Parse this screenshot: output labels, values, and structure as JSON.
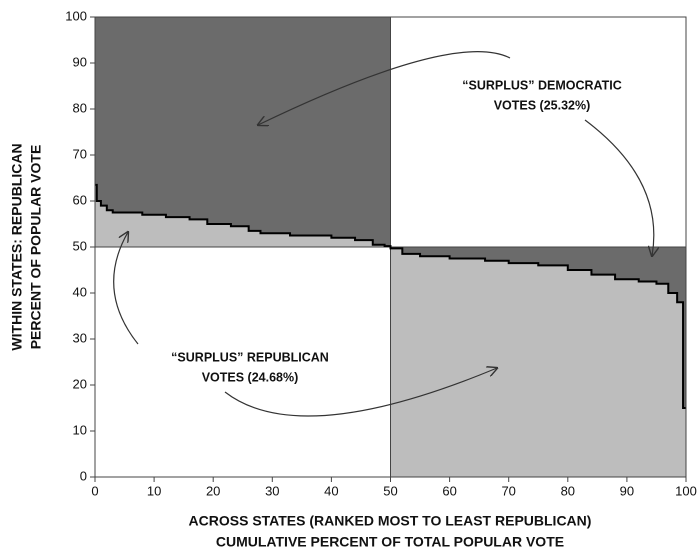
{
  "chart_data": {
    "type": "step",
    "x_label": [
      "ACROSS STATES (RANKED MOST TO LEAST REPUBLICAN)",
      "CUMULATIVE PERCENT OF TOTAL POPULAR VOTE"
    ],
    "y_label": [
      "WITHIN STATES: REPUBLICAN",
      "PERCENT OF POPULAR VOTE"
    ],
    "annotations": [
      {
        "lines": [
          "“SURPLUS” DEMOCRATIC",
          "VOTES (25.32%)"
        ]
      },
      {
        "lines": [
          "“SURPLUS” REPUBLICAN",
          "VOTES (24.68%)"
        ]
      }
    ],
    "xlim": [
      0,
      100
    ],
    "ylim": [
      0,
      100
    ],
    "xticks": [
      0,
      10,
      20,
      30,
      40,
      50,
      60,
      70,
      80,
      90,
      100
    ],
    "yticks": [
      0,
      10,
      20,
      30,
      40,
      50,
      60,
      70,
      80,
      90,
      100
    ],
    "vlines": [
      50
    ],
    "hlines": [
      50
    ],
    "color": "#000000",
    "above_color": "#6b6b6b",
    "below_color": "#bdbdbd",
    "x": [
      0,
      0.3,
      0.3,
      1,
      1,
      2,
      2,
      3,
      3,
      8,
      8,
      12,
      12,
      16,
      16,
      19,
      19,
      23,
      23,
      26,
      26,
      28,
      28,
      33,
      33,
      40,
      40,
      44,
      44,
      47,
      47,
      49,
      49,
      50,
      50,
      52,
      52,
      55,
      55,
      60,
      60,
      66,
      66,
      70,
      70,
      75,
      75,
      80,
      80,
      84,
      84,
      88,
      88,
      92,
      92,
      95,
      95,
      97,
      97,
      98.5,
      98.5,
      99.5,
      99.5,
      100
    ],
    "values": [
      63.5,
      63.5,
      60,
      60,
      59,
      59,
      58,
      58,
      57.5,
      57.5,
      57,
      57,
      56.5,
      56.5,
      56,
      56,
      55,
      55,
      54.5,
      54.5,
      53.5,
      53.5,
      53,
      53,
      52.5,
      52.5,
      52,
      52,
      51.5,
      51.5,
      50.5,
      50.5,
      50.2,
      50.2,
      49.7,
      49.7,
      48.5,
      48.5,
      48,
      48,
      47.5,
      47.5,
      47,
      47,
      46.5,
      46.5,
      46,
      46,
      45,
      45,
      44,
      44,
      43,
      43,
      42.5,
      42.5,
      42,
      42,
      40,
      40,
      38,
      38,
      15,
      15
    ]
  }
}
